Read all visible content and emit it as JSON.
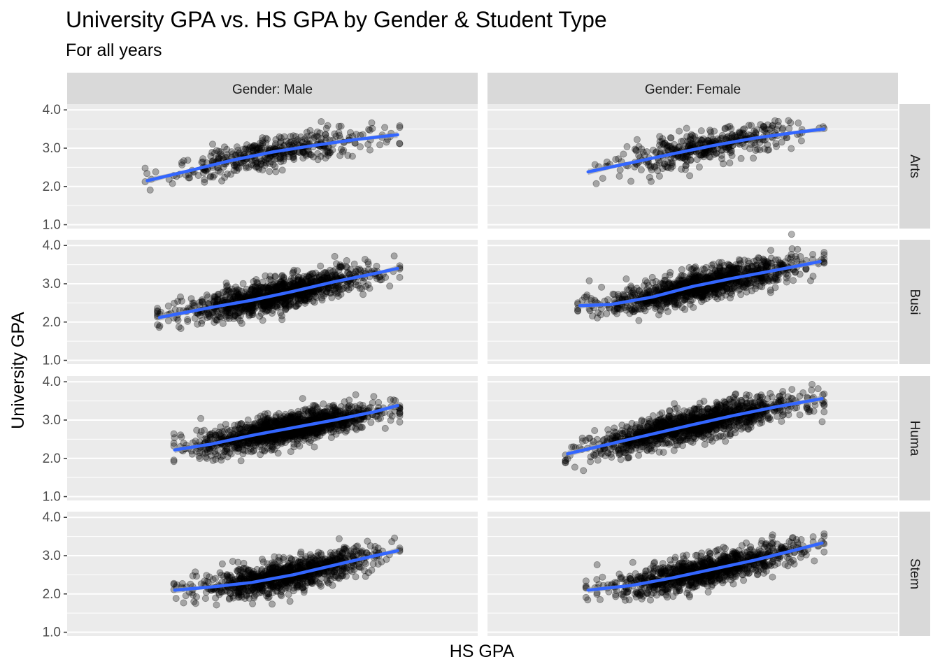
{
  "chart_data": {
    "type": "scatter",
    "title": "University GPA vs. HS GPA by Gender & Student Type",
    "subtitle": "For all years",
    "xlabel": "HS GPA",
    "ylabel": "University GPA",
    "ylim": [
      0.9,
      4.15
    ],
    "yticks": [
      "1.0",
      "2.0",
      "3.0",
      "4.0"
    ],
    "xlim": [
      0,
      10
    ],
    "x_ticks_shown": false,
    "grid": true,
    "facet_columns": [
      "Gender: Male",
      "Gender: Female"
    ],
    "facet_rows": [
      "Arts",
      "Busi",
      "Huma",
      "Stem"
    ],
    "point_color": "#000000",
    "point_alpha": 0.3,
    "smooth_color": "#3366ff",
    "ribbon_color": "#999999",
    "panel_background": "#ebebeb",
    "strip_background": "#d9d9d9",
    "panels": [
      {
        "row": "Arts",
        "col": "Gender: Male",
        "x_range": [
          1.9,
          8.1
        ],
        "n": 420,
        "smooth": [
          [
            1.95,
            2.15
          ],
          [
            3.0,
            2.42
          ],
          [
            4.0,
            2.68
          ],
          [
            5.0,
            2.9
          ],
          [
            6.0,
            3.07
          ],
          [
            7.0,
            3.22
          ],
          [
            8.05,
            3.35
          ]
        ]
      },
      {
        "row": "Arts",
        "col": "Gender: Female",
        "x_range": [
          2.4,
          8.2
        ],
        "n": 420,
        "smooth": [
          [
            2.45,
            2.38
          ],
          [
            3.5,
            2.62
          ],
          [
            4.5,
            2.85
          ],
          [
            5.5,
            3.07
          ],
          [
            6.5,
            3.26
          ],
          [
            7.5,
            3.41
          ],
          [
            8.2,
            3.5
          ]
        ]
      },
      {
        "row": "Busi",
        "col": "Gender: Male",
        "x_range": [
          2.2,
          8.1
        ],
        "n": 1100,
        "smooth": [
          [
            2.25,
            2.12
          ],
          [
            3.5,
            2.38
          ],
          [
            4.5,
            2.57
          ],
          [
            5.5,
            2.8
          ],
          [
            6.5,
            3.05
          ],
          [
            7.5,
            3.27
          ],
          [
            8.05,
            3.4
          ]
        ]
      },
      {
        "row": "Busi",
        "col": "Gender: Female",
        "x_range": [
          2.2,
          8.2
        ],
        "n": 1100,
        "smooth": [
          [
            2.25,
            2.43
          ],
          [
            3.0,
            2.46
          ],
          [
            4.0,
            2.65
          ],
          [
            5.0,
            2.93
          ],
          [
            6.0,
            3.15
          ],
          [
            7.0,
            3.35
          ],
          [
            8.1,
            3.58
          ]
        ]
      },
      {
        "row": "Huma",
        "col": "Gender: Male",
        "x_range": [
          2.6,
          8.1
        ],
        "n": 1300,
        "smooth": [
          [
            2.62,
            2.22
          ],
          [
            3.5,
            2.37
          ],
          [
            4.5,
            2.6
          ],
          [
            5.5,
            2.8
          ],
          [
            6.5,
            3.0
          ],
          [
            7.5,
            3.22
          ],
          [
            8.05,
            3.38
          ]
        ]
      },
      {
        "row": "Huma",
        "col": "Gender: Female",
        "x_range": [
          1.9,
          8.2
        ],
        "n": 1300,
        "smooth": [
          [
            1.95,
            2.12
          ],
          [
            3.0,
            2.38
          ],
          [
            4.0,
            2.63
          ],
          [
            5.0,
            2.88
          ],
          [
            6.0,
            3.12
          ],
          [
            7.0,
            3.34
          ],
          [
            8.15,
            3.56
          ]
        ]
      },
      {
        "row": "Stem",
        "col": "Gender: Male",
        "x_range": [
          2.6,
          8.1
        ],
        "n": 1000,
        "smooth": [
          [
            2.62,
            2.1
          ],
          [
            3.5,
            2.18
          ],
          [
            4.5,
            2.3
          ],
          [
            5.5,
            2.5
          ],
          [
            6.5,
            2.75
          ],
          [
            7.5,
            3.0
          ],
          [
            8.05,
            3.13
          ]
        ]
      },
      {
        "row": "Stem",
        "col": "Gender: Female",
        "x_range": [
          2.4,
          8.2
        ],
        "n": 1000,
        "smooth": [
          [
            2.45,
            2.1
          ],
          [
            3.5,
            2.22
          ],
          [
            4.5,
            2.42
          ],
          [
            5.5,
            2.65
          ],
          [
            6.5,
            2.88
          ],
          [
            7.5,
            3.15
          ],
          [
            8.15,
            3.33
          ]
        ]
      }
    ]
  }
}
